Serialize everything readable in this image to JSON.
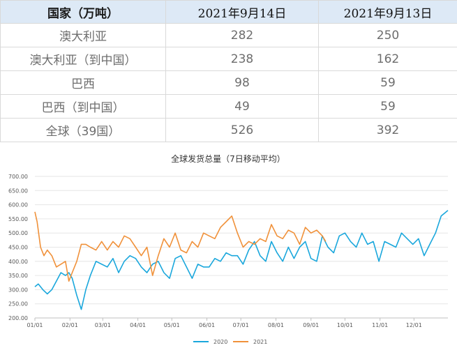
{
  "table": {
    "headers": [
      "国家（万吨）",
      "2021年9月14日",
      "2021年9月13日"
    ],
    "rows": [
      {
        "country": "澳大利亚",
        "v1": "282",
        "v2": "250"
      },
      {
        "country": "澳大利亚（到中国）",
        "v1": "238",
        "v2": "162"
      },
      {
        "country": "巴西",
        "v1": "98",
        "v2": "59"
      },
      {
        "country": "巴西（到中国）",
        "v1": "49",
        "v2": "59"
      },
      {
        "country": "全球（39国）",
        "v1": "526",
        "v2": "392"
      }
    ]
  },
  "chart_data": {
    "type": "line",
    "title": "全球发货总量（7日移动平均）",
    "xlabel": "",
    "ylabel": "",
    "ylim": [
      200,
      700
    ],
    "y_ticks": [
      "200.00",
      "250.00",
      "300.00",
      "350.00",
      "400.00",
      "450.00",
      "500.00",
      "550.00",
      "600.00",
      "650.00",
      "700.00"
    ],
    "x_ticks": [
      "01/01",
      "02/01",
      "03/01",
      "04/01",
      "05/01",
      "06/01",
      "07/01",
      "08/01",
      "09/01",
      "10/01",
      "11/01",
      "12/01"
    ],
    "grid": true,
    "legend_position": "bottom",
    "series": [
      {
        "name": "2020",
        "color": "#1aa7dc",
        "x": [
          1,
          4,
          8,
          12,
          16,
          20,
          24,
          28,
          31,
          34,
          38,
          42,
          46,
          50,
          55,
          60,
          65,
          70,
          75,
          80,
          85,
          90,
          95,
          100,
          105,
          110,
          115,
          120,
          125,
          130,
          135,
          140,
          145,
          150,
          155,
          160,
          165,
          170,
          175,
          180,
          185,
          190,
          195,
          200,
          205,
          210,
          215,
          220,
          225,
          230,
          235,
          240,
          245,
          250,
          255,
          260,
          265,
          270,
          275,
          280,
          285,
          290,
          295,
          300,
          305,
          310,
          315,
          320,
          325,
          330,
          335,
          340,
          345,
          350,
          355,
          360,
          366
        ],
        "y": [
          310,
          320,
          300,
          285,
          300,
          330,
          360,
          350,
          360,
          340,
          280,
          230,
          300,
          350,
          400,
          390,
          380,
          410,
          360,
          400,
          420,
          410,
          380,
          360,
          390,
          400,
          360,
          340,
          410,
          420,
          380,
          340,
          390,
          380,
          380,
          410,
          400,
          430,
          420,
          420,
          390,
          440,
          470,
          420,
          400,
          470,
          430,
          400,
          450,
          410,
          450,
          470,
          410,
          400,
          490,
          450,
          430,
          490,
          500,
          470,
          450,
          500,
          460,
          470,
          400,
          470,
          460,
          450,
          500,
          480,
          460,
          480,
          420,
          460,
          500,
          560,
          580
        ]
      },
      {
        "name": "2021",
        "color": "#f0913a",
        "x": [
          1,
          3,
          6,
          9,
          12,
          16,
          20,
          24,
          28,
          31,
          34,
          38,
          42,
          46,
          50,
          55,
          60,
          65,
          70,
          75,
          80,
          85,
          90,
          95,
          100,
          105,
          110,
          115,
          120,
          125,
          130,
          135,
          140,
          145,
          150,
          155,
          160,
          165,
          170,
          175,
          180,
          185,
          190,
          195,
          200,
          205,
          210,
          215,
          220,
          225,
          230,
          235,
          240,
          245,
          250,
          255,
          258
        ],
        "y": [
          575,
          540,
          450,
          420,
          440,
          420,
          380,
          390,
          400,
          330,
          360,
          400,
          460,
          460,
          450,
          440,
          470,
          440,
          470,
          450,
          490,
          480,
          450,
          420,
          450,
          350,
          420,
          480,
          450,
          500,
          440,
          430,
          470,
          450,
          500,
          490,
          480,
          520,
          540,
          560,
          500,
          450,
          470,
          460,
          480,
          470,
          530,
          490,
          480,
          510,
          500,
          460,
          520,
          500,
          510,
          490,
          470
        ]
      }
    ]
  }
}
